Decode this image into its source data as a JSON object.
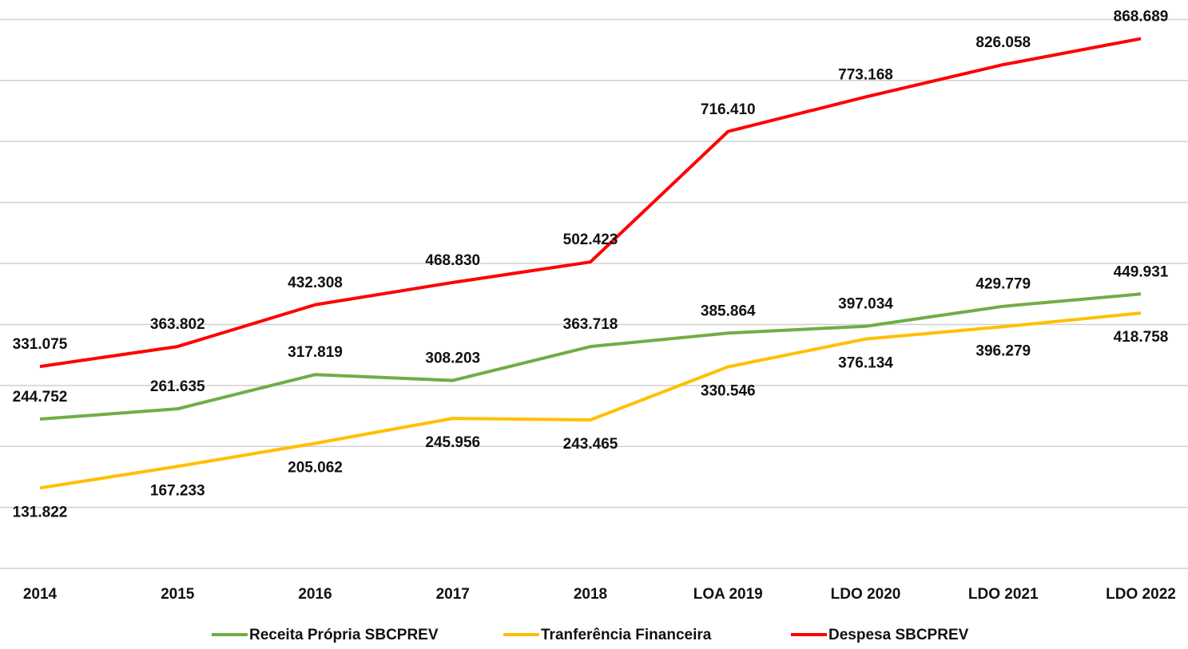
{
  "chart_data": {
    "type": "line",
    "categories": [
      "2014",
      "2015",
      "2016",
      "2017",
      "2018",
      "LOA 2019",
      "LDO 2020",
      "LDO 2021",
      "LDO 2022"
    ],
    "series": [
      {
        "name": "Receita Própria SBCPREV",
        "color": "#70ad47",
        "values": [
          244.752,
          261.635,
          317.819,
          308.203,
          363.718,
          385.864,
          397.034,
          429.779,
          449.931
        ],
        "value_labels": [
          "244.752",
          "261.635",
          "317.819",
          "308.203",
          "363.718",
          "385.864",
          "397.034",
          "429.779",
          "449.931"
        ]
      },
      {
        "name": "Tranferência Financeira",
        "color": "#ffc000",
        "values": [
          131.822,
          167.233,
          205.062,
          245.956,
          243.465,
          330.546,
          376.134,
          396.279,
          418.758
        ],
        "value_labels": [
          "131.822",
          "167.233",
          "205.062",
          "245.956",
          "243.465",
          "330.546",
          "376.134",
          "396.279",
          "418.758"
        ]
      },
      {
        "name": "Despesa SBCPREV",
        "color": "#ff0000",
        "values": [
          331.075,
          363.802,
          432.308,
          468.83,
          502.423,
          716.41,
          773.168,
          826.058,
          868.689
        ],
        "value_labels": [
          "331.075",
          "363.802",
          "432.308",
          "468.830",
          "502.423",
          "716.410",
          "773.168",
          "826.058",
          "868.689"
        ]
      }
    ],
    "ylim": [
      0,
      900
    ],
    "yticks": [
      0,
      100,
      200,
      300,
      400,
      500,
      600,
      700,
      800,
      900
    ],
    "grid": true,
    "legend": "bottom"
  }
}
